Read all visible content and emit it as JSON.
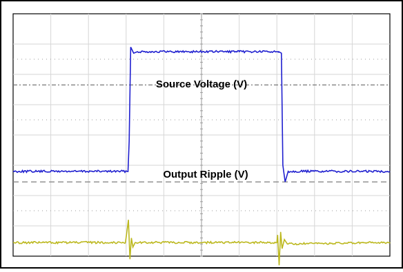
{
  "chart_data": {
    "type": "line",
    "title": "",
    "xlabel": "",
    "ylabel": "",
    "grid": true,
    "x_divisions": 10,
    "y_divisions": 8,
    "annotations": [
      "Source Voltage (V)",
      "Output Ripple (V)"
    ],
    "series": [
      {
        "name": "Source Voltage (V)",
        "color": "#1f1fcf",
        "unit_note": "divisions from top of screen",
        "x": [
          0,
          3.05,
          3.08,
          3.12,
          3.2,
          3.3,
          6.0,
          7.05,
          7.12,
          7.16,
          7.22,
          7.3,
          10
        ],
        "y": [
          5.2,
          5.2,
          4.2,
          1.1,
          1.3,
          1.25,
          1.25,
          1.25,
          1.3,
          5.0,
          5.55,
          5.2,
          5.2
        ]
      },
      {
        "name": "Output Ripple (V)",
        "color": "#bcb81e",
        "unit_note": "divisions from top of screen",
        "x": [
          0,
          2.98,
          3.02,
          3.06,
          3.1,
          3.14,
          3.18,
          3.24,
          7.0,
          7.02,
          7.06,
          7.1,
          7.14,
          7.2,
          7.28,
          10
        ],
        "y": [
          7.55,
          7.55,
          7.2,
          6.8,
          8.1,
          7.4,
          7.7,
          7.55,
          7.55,
          7.3,
          8.3,
          7.2,
          7.75,
          7.45,
          7.6,
          7.55
        ]
      }
    ],
    "reference_lines": [
      {
        "style": "dash-dot",
        "y_div": 2.35,
        "color": "#777777"
      },
      {
        "style": "dashed",
        "y_div": 5.55,
        "color": "#888888"
      }
    ],
    "colors": {
      "grid": "#d6d6d6",
      "dotted_grid": "#9a9a9a",
      "frame": "#000000",
      "background": "#ffffff"
    }
  }
}
